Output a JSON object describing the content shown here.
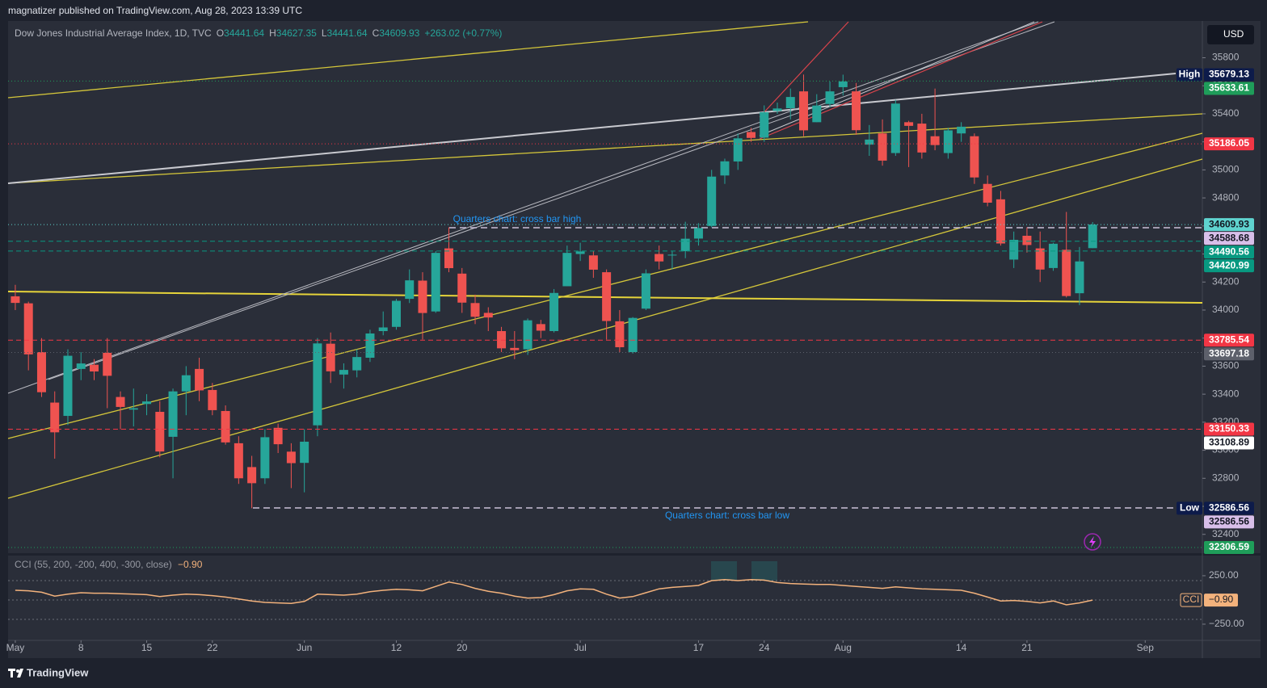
{
  "header": "magnatizer published on TradingView.com, Aug 28, 2023 13:39 UTC",
  "footer": "TradingView",
  "chart_data": [
    {
      "type": "candlestick",
      "title": "Dow Jones Industrial Average Index, 1D, TVC",
      "ohlc_legend": [
        {
          "key": "O",
          "value": 34441.64
        },
        {
          "key": "H",
          "value": 34627.35
        },
        {
          "key": "L",
          "value": 34441.64
        },
        {
          "key": "C",
          "value": 34609.93
        }
      ],
      "change": "+263.02 (+0.77%)",
      "currency": "USD",
      "up_color": "#26a69a",
      "down_color": "#ef5350",
      "open": [
        34098,
        34048,
        33700,
        33340,
        33245,
        33580,
        33610,
        33695,
        33380,
        33290,
        33330,
        33274,
        33096,
        33420,
        33580,
        33430,
        33280,
        33050,
        32880,
        32800,
        33160,
        32990,
        32910,
        33178,
        33760,
        33540,
        33570,
        33660,
        33850,
        33880,
        34080,
        34210,
        33990,
        34440,
        34260,
        34050,
        33980,
        33850,
        33730,
        33720,
        33900,
        33850,
        34170,
        34400,
        34390,
        34270,
        33920,
        33700,
        34010,
        34400,
        34390,
        34420,
        34510,
        34600,
        34960,
        35060,
        35270,
        35230,
        35420,
        35440,
        35560,
        35340,
        35470,
        35590,
        35560,
        35180,
        35260,
        35120,
        35340,
        35330,
        35240,
        35120,
        35260,
        35240,
        34900,
        34790,
        34360,
        34530,
        34440,
        34300,
        34430,
        34120,
        34441.64
      ],
      "high": [
        34180,
        34060,
        33800,
        33420,
        33720,
        33700,
        33650,
        33800,
        33420,
        33440,
        33400,
        33350,
        33440,
        33600,
        33660,
        33480,
        33320,
        33100,
        32960,
        33150,
        33190,
        33050,
        33150,
        33800,
        33840,
        33620,
        33720,
        33860,
        33990,
        34080,
        34290,
        34270,
        34420,
        34590,
        34300,
        34110,
        34020,
        33880,
        33850,
        33940,
        33930,
        34150,
        34460,
        34480,
        34420,
        34290,
        34000,
        33950,
        34290,
        34460,
        34420,
        34630,
        34620,
        35000,
        35080,
        35260,
        35300,
        35460,
        35480,
        35580,
        35680,
        35540,
        35630,
        35679.13,
        35620,
        35320,
        35360,
        35500,
        35350,
        35400,
        35580,
        35300,
        35340,
        35260,
        34960,
        34850,
        34560,
        34590,
        34560,
        34480,
        34700,
        34450,
        34627.35
      ],
      "low": [
        34000,
        33570,
        33380,
        32940,
        33180,
        33500,
        33500,
        33300,
        33150,
        33170,
        33250,
        32950,
        32800,
        33250,
        33350,
        33250,
        33040,
        32760,
        32586.56,
        32760,
        32980,
        32730,
        32700,
        33100,
        33480,
        33440,
        33520,
        33630,
        33820,
        33860,
        34050,
        33790,
        33980,
        34270,
        33980,
        33900,
        33850,
        33700,
        33650,
        33680,
        33800,
        33840,
        34170,
        34350,
        34230,
        33790,
        33700,
        33690,
        34000,
        34290,
        34290,
        34370,
        34460,
        34590,
        34900,
        35000,
        35200,
        35200,
        35400,
        35360,
        35240,
        35340,
        35450,
        35530,
        35250,
        35100,
        35030,
        35100,
        35020,
        35080,
        35140,
        35080,
        35200,
        34900,
        34740,
        34460,
        34300,
        34410,
        34200,
        34280,
        34090,
        34035,
        34441.64
      ],
      "close": [
        34051,
        33684,
        33414,
        33128,
        33674,
        33619,
        33562,
        33531,
        33309,
        33300,
        33348,
        32991,
        33420,
        33535,
        33427,
        33286,
        33056,
        32800,
        32765,
        33093,
        33043,
        32908,
        33061,
        33762,
        33563,
        33573,
        33665,
        33833,
        33876,
        34066,
        34212,
        33979,
        34408,
        34299,
        34053,
        33952,
        33947,
        33727,
        33714,
        33927,
        33853,
        34122,
        34408,
        34418,
        34288,
        33922,
        33735,
        33944,
        34262,
        34347,
        34395,
        34509,
        34585,
        34952,
        35061,
        35225,
        35228,
        35411,
        35438,
        35520,
        35282,
        35459,
        35560,
        35631,
        35283,
        35216,
        35066,
        35473,
        35314,
        35124,
        35177,
        35282,
        35308,
        34946,
        34766,
        34475,
        34501,
        34464,
        34289,
        34473,
        34100,
        34347,
        34609.93
      ],
      "xlim": [
        -0.55,
        90.35
      ],
      "xticks": [
        {
          "value": 0,
          "label": "May"
        },
        {
          "value": 5,
          "label": "8"
        },
        {
          "value": 10,
          "label": "15"
        },
        {
          "value": 15,
          "label": "22"
        },
        {
          "value": 22,
          "label": "Jun"
        },
        {
          "value": 29,
          "label": "12"
        },
        {
          "value": 34,
          "label": "20"
        },
        {
          "value": 43,
          "label": "Jul"
        },
        {
          "value": 52,
          "label": "17"
        },
        {
          "value": 57,
          "label": "24"
        },
        {
          "value": 63,
          "label": "Aug"
        },
        {
          "value": 72,
          "label": "14"
        },
        {
          "value": 77,
          "label": "21"
        },
        {
          "value": 86,
          "label": "Sep"
        }
      ],
      "ylim": [
        32266,
        36062
      ],
      "yticks": [
        32400,
        32600,
        32800,
        33000,
        33200,
        33400,
        33600,
        33800,
        34000,
        34200,
        34400,
        34600,
        34800,
        35000,
        35200,
        35400,
        35600,
        35800
      ],
      "grid": false,
      "levels": [
        {
          "value": 35679.13,
          "tag": "High",
          "color": "#0d1b4a",
          "text_color": "#ffffff",
          "style": "none"
        },
        {
          "value": 35633.61,
          "color": "#1f9d5a",
          "text_color": "#ffffff",
          "style": "dotted"
        },
        {
          "value": 35186.05,
          "color": "#f23645",
          "text_color": "#ffffff",
          "style": "dotted"
        },
        {
          "value": 34609.93,
          "color": "#5fd3cf",
          "text_color": "#131722",
          "style": "dotted"
        },
        {
          "value": 34588.68,
          "color": "#d8bfe9",
          "text_color": "#131722",
          "style": "none"
        },
        {
          "value": 34490.56,
          "color": "#089981",
          "text_color": "#ffffff",
          "style": "dashed"
        },
        {
          "value": 34420.99,
          "color": "#089981",
          "text_color": "#ffffff",
          "style": "dashed"
        },
        {
          "value": 33785.54,
          "color": "#f23645",
          "text_color": "#ffffff",
          "style": "dashed"
        },
        {
          "value": 33697.18,
          "color": "#5d606b",
          "text_color": "#ffffff",
          "style": "dotted"
        },
        {
          "value": 33150.33,
          "color": "#f23645",
          "text_color": "#ffffff",
          "style": "dashed"
        },
        {
          "value": 33108.89,
          "color": "#ffffff",
          "text_color": "#131722",
          "style": "none"
        },
        {
          "value": 32586.56,
          "tag": "Low",
          "color": "#0d1b4a",
          "text_color": "#ffffff",
          "style": "none"
        },
        {
          "value": 32586.56,
          "color": "#d8bfe9",
          "text_color": "#131722",
          "style": "none"
        },
        {
          "value": 32306.59,
          "color": "#1f9d5a",
          "text_color": "#ffffff",
          "style": "dotted"
        }
      ],
      "annotations": [
        "Quarters chart: cross bar high",
        "Quarters chart: cross bar low"
      ]
    },
    {
      "type": "line",
      "title": "CCI (55, 200, -200, 400, -300, close)",
      "tag": "CCI",
      "last": {
        "value": -0.9,
        "label": "−0.90"
      },
      "color": "#f3b27c",
      "values": [
        100,
        95,
        80,
        40,
        60,
        75,
        70,
        70,
        65,
        60,
        55,
        35,
        50,
        60,
        55,
        45,
        30,
        10,
        -10,
        -25,
        -30,
        -35,
        -15,
        60,
        55,
        50,
        60,
        85,
        100,
        110,
        105,
        95,
        140,
        185,
        160,
        120,
        90,
        70,
        40,
        20,
        25,
        55,
        95,
        115,
        110,
        60,
        20,
        35,
        75,
        115,
        130,
        140,
        150,
        200,
        210,
        200,
        210,
        205,
        180,
        170,
        165,
        160,
        160,
        150,
        140,
        130,
        120,
        135,
        125,
        115,
        110,
        105,
        100,
        70,
        30,
        -10,
        -5,
        -15,
        -30,
        -10,
        -50,
        -30,
        -0.9
      ],
      "ylim": [
        -417,
        458
      ],
      "yticks": [
        {
          "value": 250,
          "label": "250.00"
        },
        {
          "value": -250,
          "label": "−250.00"
        }
      ],
      "bands": [
        200,
        0,
        -200
      ]
    }
  ]
}
